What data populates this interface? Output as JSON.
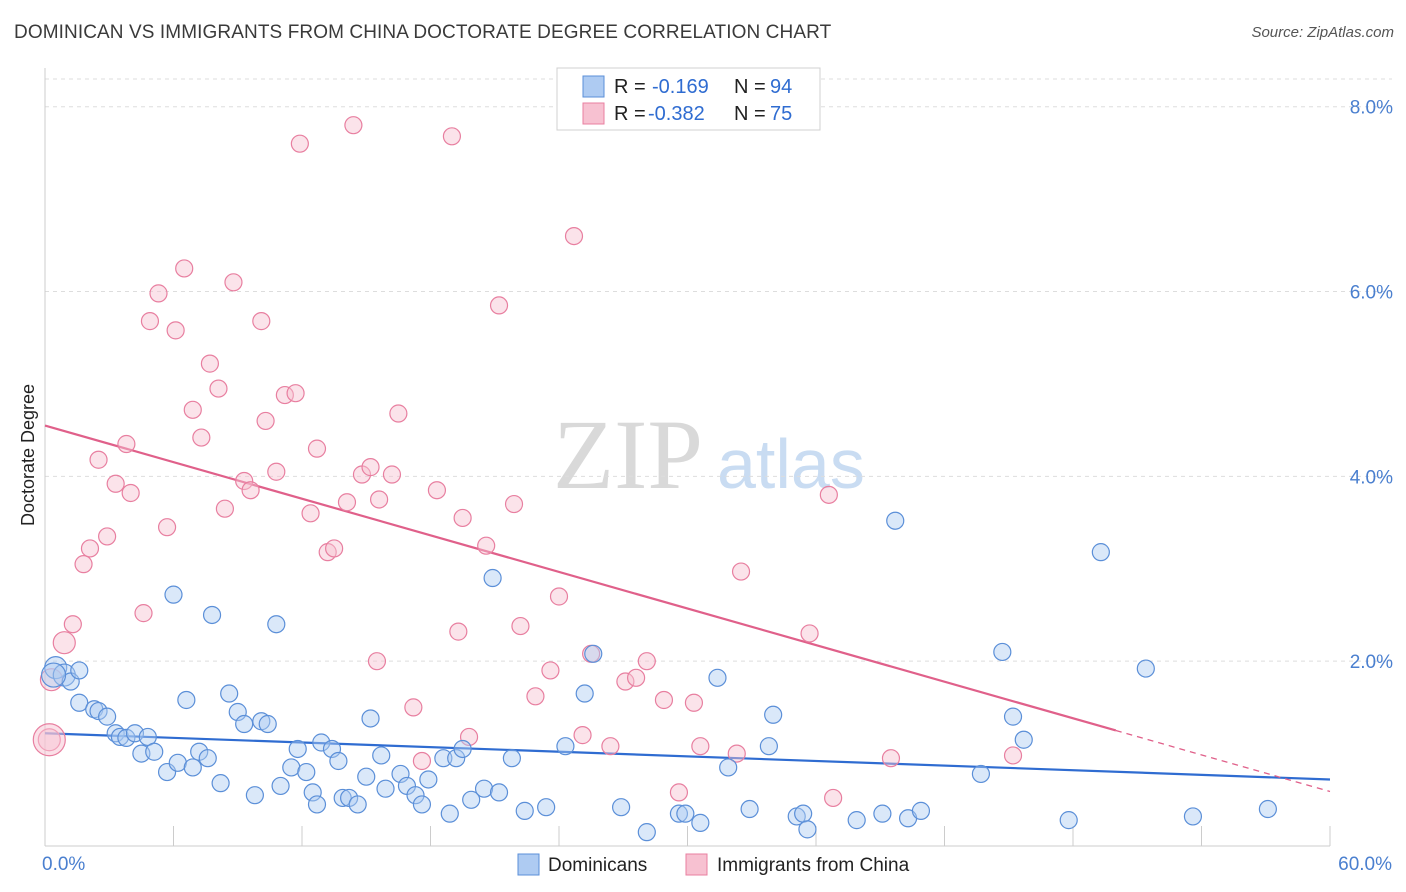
{
  "title": "DOMINICAN VS IMMIGRANTS FROM CHINA DOCTORATE DEGREE CORRELATION CHART",
  "source": "Source: ZipAtlas.com",
  "watermark": {
    "zip": "ZIP",
    "atlas": "atlas"
  },
  "colors": {
    "blue_fill": "#aecbf2",
    "blue_stroke": "#5b8fd8",
    "blue_line": "#2f6cd1",
    "pink_fill": "#f7c1d1",
    "pink_stroke": "#e87fa0",
    "pink_line": "#e0608a",
    "grid": "#dddddd",
    "tick_label": "#4a7fcf"
  },
  "legend": {
    "rows": [
      {
        "r_label": "R =",
        "r_value": "-0.169",
        "n_label": "N =",
        "n_value": "94"
      },
      {
        "r_label": "R =",
        "r_value": "-0.382",
        "n_label": "N =",
        "n_value": "75"
      }
    ]
  },
  "bottom_legend": [
    "Dominicans",
    "Immigrants from China"
  ],
  "chart_data": {
    "type": "scatter",
    "title": "DOMINICAN VS IMMIGRANTS FROM CHINA DOCTORATE DEGREE CORRELATION CHART",
    "xlabel": "",
    "ylabel": "Doctorate Degree",
    "xlim": [
      0,
      60
    ],
    "ylim": [
      0,
      8.3
    ],
    "x_tick_labels": [
      "0.0%",
      "60.0%"
    ],
    "y_ticks": [
      2,
      4,
      6,
      8
    ],
    "y_tick_labels": [
      "2.0%",
      "4.0%",
      "6.0%",
      "8.0%"
    ],
    "grid": "horizontal dashed",
    "legend_position": "top-center",
    "series": [
      {
        "name": "Dominicans",
        "color": "#5b8fd8",
        "trend": {
          "x": [
            0,
            60
          ],
          "y": [
            1.22,
            0.72
          ]
        },
        "points": [
          [
            0.5,
            1.93
          ],
          [
            0.9,
            1.85
          ],
          [
            1.2,
            1.78
          ],
          [
            1.6,
            1.9
          ],
          [
            1.6,
            1.55
          ],
          [
            2.3,
            1.48
          ],
          [
            2.5,
            1.46
          ],
          [
            2.9,
            1.4
          ],
          [
            3.3,
            1.22
          ],
          [
            3.5,
            1.18
          ],
          [
            3.8,
            1.17
          ],
          [
            4.2,
            1.22
          ],
          [
            4.5,
            1.0
          ],
          [
            4.8,
            1.18
          ],
          [
            5.1,
            1.02
          ],
          [
            5.7,
            0.8
          ],
          [
            6.0,
            2.72
          ],
          [
            6.2,
            0.9
          ],
          [
            6.6,
            1.58
          ],
          [
            6.9,
            0.85
          ],
          [
            7.2,
            1.02
          ],
          [
            7.6,
            0.95
          ],
          [
            7.8,
            2.5
          ],
          [
            8.2,
            0.68
          ],
          [
            8.6,
            1.65
          ],
          [
            9.0,
            1.45
          ],
          [
            9.3,
            1.32
          ],
          [
            9.8,
            0.55
          ],
          [
            10.1,
            1.35
          ],
          [
            10.4,
            1.32
          ],
          [
            10.8,
            2.4
          ],
          [
            11.0,
            0.65
          ],
          [
            11.5,
            0.85
          ],
          [
            11.8,
            1.05
          ],
          [
            12.2,
            0.8
          ],
          [
            12.5,
            0.58
          ],
          [
            12.7,
            0.45
          ],
          [
            12.9,
            1.12
          ],
          [
            13.4,
            1.05
          ],
          [
            13.7,
            0.92
          ],
          [
            13.9,
            0.52
          ],
          [
            14.2,
            0.52
          ],
          [
            14.6,
            0.45
          ],
          [
            15.0,
            0.75
          ],
          [
            15.2,
            1.38
          ],
          [
            15.7,
            0.98
          ],
          [
            15.9,
            0.62
          ],
          [
            16.6,
            0.78
          ],
          [
            16.9,
            0.65
          ],
          [
            17.3,
            0.55
          ],
          [
            17.6,
            0.45
          ],
          [
            17.9,
            0.72
          ],
          [
            18.6,
            0.95
          ],
          [
            18.9,
            0.35
          ],
          [
            19.2,
            0.95
          ],
          [
            19.5,
            1.05
          ],
          [
            19.9,
            0.5
          ],
          [
            20.5,
            0.62
          ],
          [
            20.9,
            2.9
          ],
          [
            21.2,
            0.58
          ],
          [
            21.8,
            0.95
          ],
          [
            22.4,
            0.38
          ],
          [
            23.4,
            0.42
          ],
          [
            24.3,
            1.08
          ],
          [
            25.2,
            1.65
          ],
          [
            25.6,
            2.08
          ],
          [
            26.9,
            0.42
          ],
          [
            28.1,
            0.15
          ],
          [
            29.6,
            0.35
          ],
          [
            29.9,
            0.35
          ],
          [
            30.6,
            0.25
          ],
          [
            31.4,
            1.82
          ],
          [
            31.9,
            0.85
          ],
          [
            32.9,
            0.4
          ],
          [
            33.8,
            1.08
          ],
          [
            34.0,
            1.42
          ],
          [
            35.1,
            0.32
          ],
          [
            35.4,
            0.35
          ],
          [
            35.6,
            0.18
          ],
          [
            37.9,
            0.28
          ],
          [
            39.1,
            0.35
          ],
          [
            39.7,
            3.52
          ],
          [
            40.3,
            0.3
          ],
          [
            40.9,
            0.38
          ],
          [
            43.7,
            0.78
          ],
          [
            44.7,
            2.1
          ],
          [
            45.2,
            1.4
          ],
          [
            45.7,
            1.15
          ],
          [
            47.8,
            0.28
          ],
          [
            49.3,
            3.18
          ],
          [
            51.4,
            1.92
          ],
          [
            53.6,
            0.32
          ],
          [
            57.1,
            0.4
          ]
        ]
      },
      {
        "name": "Immigrants from China",
        "color": "#e87fa0",
        "trend": {
          "x": [
            0,
            50
          ],
          "y": [
            4.55,
            1.25
          ]
        },
        "points": [
          [
            0.2,
            1.15
          ],
          [
            0.3,
            1.8
          ],
          [
            0.9,
            2.2
          ],
          [
            1.3,
            2.4
          ],
          [
            1.8,
            3.05
          ],
          [
            2.1,
            3.22
          ],
          [
            2.5,
            4.18
          ],
          [
            2.9,
            3.35
          ],
          [
            3.3,
            3.92
          ],
          [
            3.8,
            4.35
          ],
          [
            4.0,
            3.82
          ],
          [
            4.6,
            2.52
          ],
          [
            4.9,
            5.68
          ],
          [
            5.3,
            5.98
          ],
          [
            5.7,
            3.45
          ],
          [
            6.1,
            5.58
          ],
          [
            6.5,
            6.25
          ],
          [
            6.9,
            4.72
          ],
          [
            7.3,
            4.42
          ],
          [
            7.7,
            5.22
          ],
          [
            8.1,
            4.95
          ],
          [
            8.4,
            3.65
          ],
          [
            8.8,
            6.1
          ],
          [
            9.3,
            3.95
          ],
          [
            9.6,
            3.85
          ],
          [
            10.1,
            5.68
          ],
          [
            10.3,
            4.6
          ],
          [
            10.8,
            4.05
          ],
          [
            11.2,
            4.88
          ],
          [
            11.7,
            4.9
          ],
          [
            11.9,
            7.6
          ],
          [
            12.4,
            3.6
          ],
          [
            12.7,
            4.3
          ],
          [
            13.2,
            3.18
          ],
          [
            13.5,
            3.22
          ],
          [
            14.1,
            3.72
          ],
          [
            14.4,
            7.8
          ],
          [
            14.8,
            4.02
          ],
          [
            15.2,
            4.1
          ],
          [
            15.5,
            2.0
          ],
          [
            15.6,
            3.75
          ],
          [
            16.2,
            4.02
          ],
          [
            16.5,
            4.68
          ],
          [
            17.2,
            1.5
          ],
          [
            17.6,
            0.92
          ],
          [
            18.3,
            3.85
          ],
          [
            19.0,
            7.68
          ],
          [
            19.3,
            2.32
          ],
          [
            19.5,
            3.55
          ],
          [
            19.8,
            1.18
          ],
          [
            20.6,
            3.25
          ],
          [
            21.2,
            5.85
          ],
          [
            21.9,
            3.7
          ],
          [
            22.2,
            2.38
          ],
          [
            22.9,
            1.62
          ],
          [
            23.6,
            1.9
          ],
          [
            24.0,
            2.7
          ],
          [
            24.7,
            6.6
          ],
          [
            25.1,
            1.2
          ],
          [
            25.5,
            2.08
          ],
          [
            26.4,
            1.08
          ],
          [
            27.1,
            1.78
          ],
          [
            27.6,
            1.82
          ],
          [
            28.1,
            2.0
          ],
          [
            28.9,
            1.58
          ],
          [
            29.6,
            0.58
          ],
          [
            30.3,
            1.55
          ],
          [
            30.6,
            1.08
          ],
          [
            32.3,
            1.0
          ],
          [
            32.5,
            2.97
          ],
          [
            35.7,
            2.3
          ],
          [
            36.6,
            3.8
          ],
          [
            36.8,
            0.52
          ],
          [
            39.5,
            0.95
          ],
          [
            45.2,
            0.98
          ]
        ]
      }
    ]
  }
}
